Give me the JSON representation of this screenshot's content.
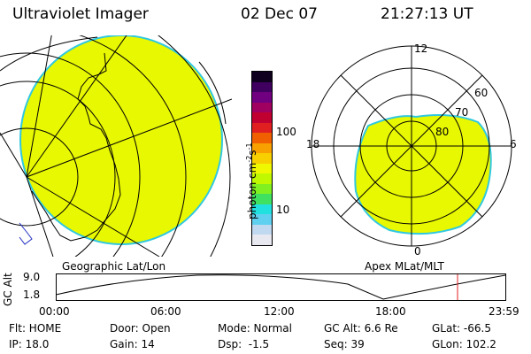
{
  "header": {
    "title": "Ultraviolet Imager",
    "date": "02 Dec 07",
    "time": "21:27:13 UT"
  },
  "colors": {
    "aurora_fill": "#e8f800",
    "aurora_edge": "#30c8e0",
    "background": "#ffffff",
    "grid": "#000000",
    "current_time_marker": "#e02020"
  },
  "geo_panel": {
    "label": "Geographic Lat/Lon"
  },
  "polar_panel": {
    "label": "Apex MLat/MLT",
    "mlt_labels": {
      "top": "12",
      "bottom": "0",
      "left": "18",
      "right": "6"
    },
    "mlat_labels": [
      "60",
      "70",
      "80"
    ]
  },
  "colorbar": {
    "unit_label": "photon cm",
    "unit_exp1": "-2",
    "unit_mid": "s",
    "unit_exp2": "-1",
    "tick_labels": [
      "100",
      "10"
    ],
    "colors": [
      "#e8e8f0",
      "#c0d8f0",
      "#60d0f0",
      "#20e0e0",
      "#40e060",
      "#80f020",
      "#c0f800",
      "#f0f800",
      "#f8d000",
      "#f8a000",
      "#f06000",
      "#e02020",
      "#c00030",
      "#a00060",
      "#700080",
      "#400060",
      "#100020"
    ]
  },
  "altitude_plot": {
    "ylabel": "GC Alt",
    "ytick_labels": [
      "9.0",
      "1.8"
    ],
    "ylim": [
      1.8,
      9.0
    ],
    "xtick_labels": [
      "00:00",
      "06:00",
      "12:00",
      "18:00",
      "23:59"
    ],
    "current_time": "21:27"
  },
  "info_grid": [
    [
      "Flt: HOME",
      "Door: Open",
      "Mode: Normal",
      "GC Alt: 6.6 Re",
      "GLat: -66.5"
    ],
    [
      "IP: 18.0",
      "Gain: 14",
      "Dsp:  -1.5",
      "Seq: 39",
      "GLon: 102.2"
    ]
  ]
}
